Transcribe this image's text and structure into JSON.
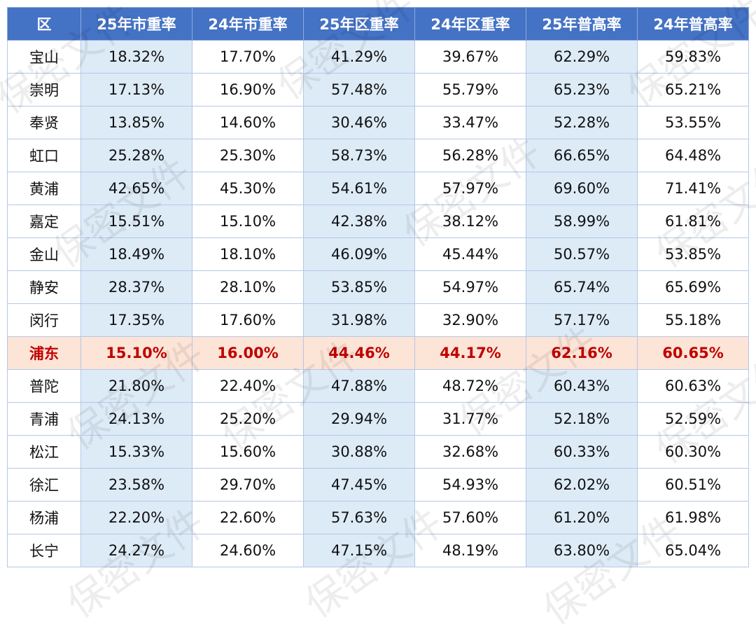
{
  "watermark": "保密文件",
  "table": {
    "headers": [
      "区",
      "25年市重率",
      "24年市重率",
      "25年区重率",
      "24年区重率",
      "25年普高率",
      "24年普高率"
    ],
    "highlight_row": "浦东",
    "colors": {
      "header": "#4472c4",
      "shade": "#ddebf7",
      "highlight_bg": "#fce4d6",
      "highlight_text": "#c00000"
    },
    "rows": [
      [
        "宝山",
        "18.32%",
        "17.70%",
        "41.29%",
        "39.67%",
        "62.29%",
        "59.83%"
      ],
      [
        "崇明",
        "17.13%",
        "16.90%",
        "57.48%",
        "55.79%",
        "65.23%",
        "65.21%"
      ],
      [
        "奉贤",
        "13.85%",
        "14.60%",
        "30.46%",
        "33.47%",
        "52.28%",
        "53.55%"
      ],
      [
        "虹口",
        "25.28%",
        "25.30%",
        "58.73%",
        "56.28%",
        "66.65%",
        "64.48%"
      ],
      [
        "黄浦",
        "42.65%",
        "45.30%",
        "54.61%",
        "57.97%",
        "69.60%",
        "71.41%"
      ],
      [
        "嘉定",
        "15.51%",
        "15.10%",
        "42.38%",
        "38.12%",
        "58.99%",
        "61.81%"
      ],
      [
        "金山",
        "18.49%",
        "18.10%",
        "46.09%",
        "45.44%",
        "50.57%",
        "53.85%"
      ],
      [
        "静安",
        "28.37%",
        "28.10%",
        "53.85%",
        "54.97%",
        "65.74%",
        "65.69%"
      ],
      [
        "闵行",
        "17.35%",
        "17.60%",
        "31.98%",
        "32.90%",
        "57.17%",
        "55.18%"
      ],
      [
        "浦东",
        "15.10%",
        "16.00%",
        "44.46%",
        "44.17%",
        "62.16%",
        "60.65%"
      ],
      [
        "普陀",
        "21.80%",
        "22.40%",
        "47.88%",
        "48.72%",
        "60.43%",
        "60.63%"
      ],
      [
        "青浦",
        "24.13%",
        "25.20%",
        "29.94%",
        "31.77%",
        "52.18%",
        "52.59%"
      ],
      [
        "松江",
        "15.33%",
        "15.60%",
        "30.88%",
        "32.68%",
        "60.33%",
        "60.30%"
      ],
      [
        "徐汇",
        "23.58%",
        "29.70%",
        "47.45%",
        "54.93%",
        "62.02%",
        "60.51%"
      ],
      [
        "杨浦",
        "22.20%",
        "22.60%",
        "57.63%",
        "57.60%",
        "61.20%",
        "61.98%"
      ],
      [
        "长宁",
        "24.27%",
        "24.60%",
        "47.15%",
        "48.19%",
        "63.80%",
        "65.04%"
      ]
    ]
  }
}
